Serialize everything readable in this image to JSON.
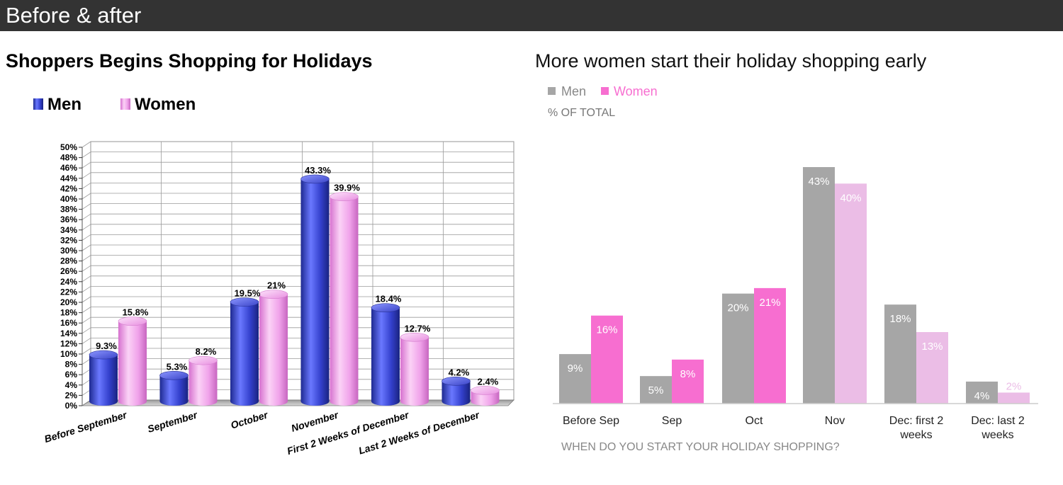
{
  "header": {
    "title": "Before & after"
  },
  "chart_data": [
    {
      "type": "bar",
      "title": "Shoppers Begins Shopping for Holidays",
      "categories": [
        "Before September",
        "September",
        "October",
        "November",
        "First 2 Weeks of December",
        "Last 2 Weeks of December"
      ],
      "series": [
        {
          "name": "Men",
          "values": [
            9.3,
            5.3,
            19.5,
            43.3,
            18.4,
            4.2
          ],
          "labels": [
            "9.3%",
            "5.3%",
            "19.5%",
            "43.3%",
            "18.4%",
            "4.2%"
          ],
          "color": "#3a44c8"
        },
        {
          "name": "Women",
          "values": [
            15.8,
            8.2,
            21,
            39.9,
            12.7,
            2.4
          ],
          "labels": [
            "15.8%",
            "8.2%",
            "21%",
            "39.9%",
            "12.7%",
            "2.4%"
          ],
          "color": "#ee9ae8"
        }
      ],
      "ylim": [
        0,
        50
      ],
      "ytick_labels": [
        "0%",
        "2%",
        "4%",
        "6%",
        "8%",
        "10%",
        "12%",
        "14%",
        "16%",
        "18%",
        "20%",
        "22%",
        "24%",
        "26%",
        "28%",
        "30%",
        "32%",
        "34%",
        "36%",
        "38%",
        "40%",
        "42%",
        "44%",
        "46%",
        "48%",
        "50%"
      ],
      "legend_position": "top-left",
      "grid": true,
      "style": "3d-cylinder"
    },
    {
      "type": "bar",
      "title": "More women start their holiday shopping early",
      "subtitle": "% OF TOTAL",
      "xlabel": "WHEN DO YOU START YOUR HOLIDAY SHOPPING?",
      "categories": [
        "Before Sep",
        "Sep",
        "Oct",
        "Nov",
        "Dec: first 2 weeks",
        "Dec: last 2 weeks"
      ],
      "category_lines": [
        [
          "Before Sep"
        ],
        [
          "Sep"
        ],
        [
          "Oct"
        ],
        [
          "Nov"
        ],
        [
          "Dec: first 2",
          "weeks"
        ],
        [
          "Dec: last 2",
          "weeks"
        ]
      ],
      "series": [
        {
          "name": "Men",
          "values": [
            9,
            5,
            20,
            43,
            18,
            4
          ],
          "labels": [
            "9%",
            "5%",
            "20%",
            "43%",
            "18%",
            "4%"
          ],
          "color": "#a6a6a6"
        },
        {
          "name": "Women",
          "values": [
            16,
            8,
            21,
            40,
            13,
            2
          ],
          "labels": [
            "16%",
            "8%",
            "21%",
            "40%",
            "13%",
            "2%"
          ],
          "color": "#f76ed0",
          "muted_color": "#ebbde6"
        }
      ],
      "highlighted_categories": [
        "Before Sep",
        "Sep",
        "Oct"
      ],
      "ylim": [
        0,
        45
      ],
      "legend_position": "top-left",
      "grid": false
    }
  ]
}
